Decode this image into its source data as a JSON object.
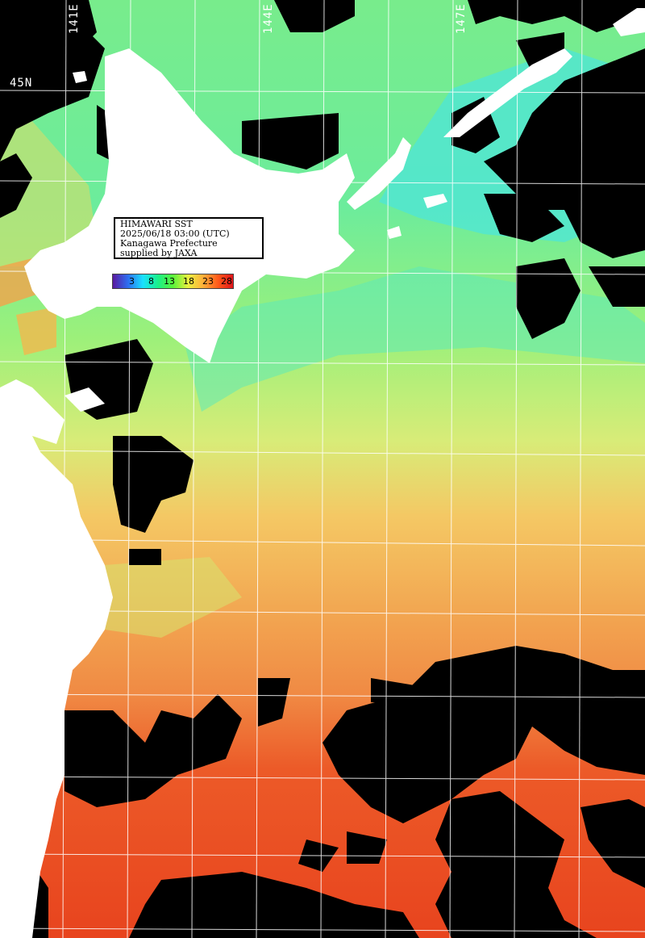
{
  "title_box": {
    "line1": "HIMAWARI SST",
    "line2": "2025/06/18 03:00 (UTC)",
    "line3": "Kanagawa Prefecture",
    "line4": "supplied by JAXA"
  },
  "legend": {
    "ticks": [
      "3",
      "8",
      "13",
      "18",
      "23",
      "28"
    ],
    "colors": [
      "#5a1aa0",
      "#2d6df0",
      "#19e0ff",
      "#19f08a",
      "#5af23a",
      "#e8f040",
      "#ffb03a",
      "#ff5a1a",
      "#e0141a"
    ]
  },
  "grid_labels": {
    "lon1": "141E",
    "lon2": "144E",
    "lon3": "147E",
    "lat1": "45N"
  },
  "colors": {
    "land": "#ffffff",
    "cloud": "#000000",
    "grid": "#ffffff",
    "sst_cold": "#3cf0e8",
    "sst_cool": "#8ef28a",
    "sst_mid": "#e8e870",
    "sst_warm": "#f0a040",
    "sst_hot": "#e8461e"
  }
}
